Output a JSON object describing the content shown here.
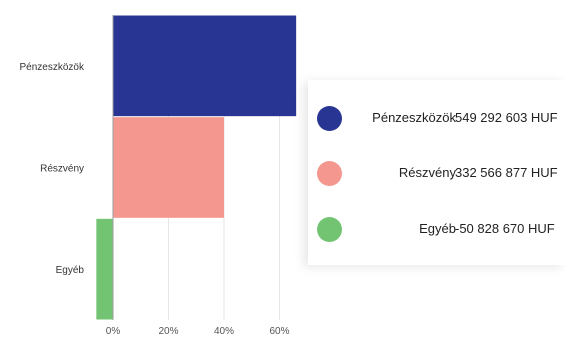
{
  "chart_data": {
    "type": "bar",
    "orientation": "horizontal",
    "categories": [
      "Pénzeszközök",
      "Részvény",
      "Egyéb"
    ],
    "values": [
      66,
      40,
      -6
    ],
    "colors": [
      "#283593",
      "#f4988f",
      "#72c472"
    ],
    "xticks": [
      "0%",
      "20%",
      "40%",
      "60%"
    ],
    "xtick_values": [
      0,
      20,
      40,
      60
    ],
    "xlim": [
      -7,
      68
    ],
    "grid": true
  },
  "legend": {
    "items": [
      {
        "name": "Pénzeszközök",
        "value": "549 292 603 HUF",
        "color": "#283593"
      },
      {
        "name": "Részvény",
        "value": "332 566 877 HUF",
        "color": "#f4988f"
      },
      {
        "name": "Egyéb",
        "value": "-50 828 670 HUF",
        "color": "#72c472"
      }
    ]
  }
}
